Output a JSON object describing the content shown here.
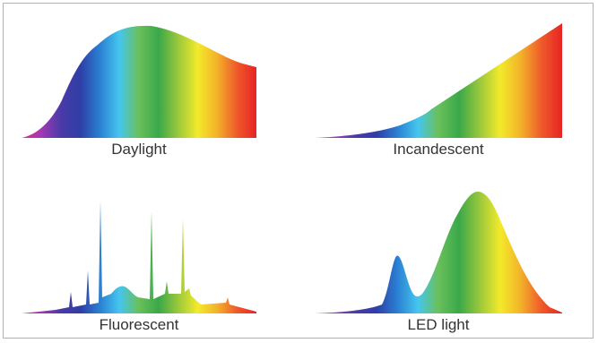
{
  "colors": {
    "spectrum": [
      "#e6288c",
      "#a23ab4",
      "#4a3aa8",
      "#2f3ea6",
      "#2a7fd2",
      "#45c6ee",
      "#6ac05a",
      "#3aa84a",
      "#9ac83c",
      "#f3ea2a",
      "#f3b12a",
      "#ef5a2a",
      "#e72424"
    ],
    "frame_border": "#ef9a9a",
    "caption_text": "#333333"
  },
  "panels": {
    "daylight": {
      "caption": "Daylight"
    },
    "incandescent": {
      "caption": "Incandescent"
    },
    "fluorescent": {
      "caption": "Fluorescent"
    },
    "led": {
      "caption": "LED light"
    }
  }
}
